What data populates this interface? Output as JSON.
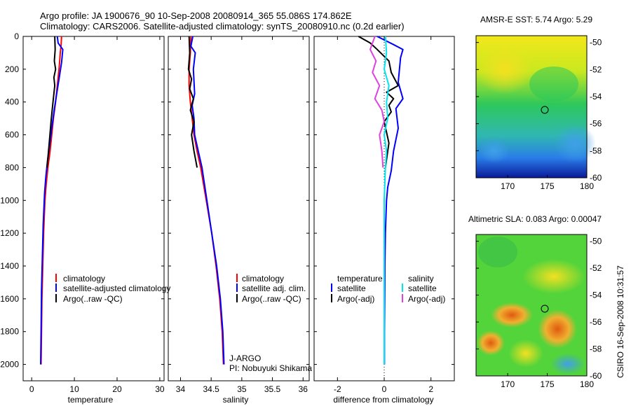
{
  "header": {
    "title_line1": "Argo profile: JA 1900676_90 10-Sep-2008 20080914_365 55.086S 174.862E",
    "title_line2": "Climatology: CARS2006. Satellite-adjusted climatology: synTS_20080910.nc (0.2d earlier)"
  },
  "colors": {
    "climatology": "#ff0000",
    "satellite": "#0000ff",
    "argo": "#000000",
    "satellite_diff": "#00e5ee",
    "argo_diff_sal": "#e040e0"
  },
  "chart_data": [
    {
      "id": "temperature",
      "type": "line",
      "xlabel": "temperature",
      "xlim": [
        -2,
        31
      ],
      "ylim": [
        2100,
        0
      ],
      "xticks": [
        "0",
        "10",
        "20",
        "30"
      ],
      "xtick_values": [
        0,
        10,
        20,
        30
      ],
      "yticks": [
        "0",
        "200",
        "400",
        "600",
        "800",
        "1000",
        "1200",
        "1400",
        "1600",
        "1800",
        "2000"
      ],
      "ytick_values": [
        0,
        200,
        400,
        600,
        800,
        1000,
        1200,
        1400,
        1600,
        1800,
        2000
      ],
      "legend": [
        "climatology",
        "satellite-adjusted climatology",
        "Argo(..raw -QC)"
      ],
      "series": [
        {
          "name": "climatology",
          "color": "#ff0000",
          "x": [
            7.0,
            6.9,
            6.7,
            6.4,
            6.0,
            5.6,
            5.1,
            4.7,
            4.3,
            3.8,
            3.4,
            3.1,
            2.8,
            2.6,
            2.4,
            2.3,
            2.2
          ],
          "y": [
            0,
            50,
            100,
            200,
            300,
            400,
            500,
            600,
            700,
            800,
            900,
            1000,
            1200,
            1400,
            1600,
            1800,
            2000
          ]
        },
        {
          "name": "satellite-adjusted climatology",
          "color": "#0000ff",
          "x": [
            6.0,
            6.2,
            7.3,
            7.0,
            6.4,
            5.8,
            5.2,
            4.7,
            4.2,
            3.7,
            3.3,
            3.0,
            2.7,
            2.5,
            2.3,
            2.2,
            2.1
          ],
          "y": [
            0,
            40,
            80,
            160,
            260,
            360,
            460,
            560,
            660,
            760,
            860,
            960,
            1150,
            1350,
            1550,
            1800,
            2000
          ]
        },
        {
          "name": "Argo(..raw -QC)",
          "color": "#000000",
          "x": [
            5.4,
            5.5,
            5.3,
            5.6,
            5.2,
            5.4,
            5.0,
            4.6,
            4.1,
            3.6
          ],
          "y": [
            0,
            80,
            150,
            200,
            250,
            300,
            400,
            500,
            650,
            800
          ]
        }
      ]
    },
    {
      "id": "salinity",
      "type": "line",
      "xlabel": "salinity",
      "xlim": [
        33.8,
        36.1
      ],
      "ylim": [
        2100,
        0
      ],
      "xticks": [
        "34",
        "34.5",
        "35",
        "35.5",
        "36"
      ],
      "xtick_values": [
        34,
        34.5,
        35,
        35.5,
        36
      ],
      "legend": [
        "climatology",
        "satellite adj. clim.",
        "Argo(..raw -QC)"
      ],
      "annotation": [
        "J-ARGO",
        "PI: Nobuyuki Shikama"
      ],
      "series": [
        {
          "name": "climatology",
          "color": "#ff0000",
          "x": [
            34.17,
            34.16,
            34.14,
            34.14,
            34.16,
            34.19,
            34.22,
            34.27,
            34.33,
            34.42,
            34.51,
            34.58,
            34.64,
            34.68,
            34.7
          ],
          "y": [
            0,
            100,
            200,
            300,
            400,
            500,
            600,
            700,
            800,
            1000,
            1200,
            1400,
            1600,
            1800,
            2000
          ]
        },
        {
          "name": "satellite adj. clim.",
          "color": "#0000ff",
          "x": [
            34.2,
            34.17,
            34.24,
            34.21,
            34.23,
            34.19,
            34.22,
            34.23,
            34.29,
            34.35,
            34.43,
            34.51,
            34.59,
            34.65,
            34.69,
            34.71
          ],
          "y": [
            0,
            60,
            100,
            200,
            350,
            420,
            500,
            600,
            700,
            800,
            1000,
            1200,
            1400,
            1600,
            1800,
            2000
          ]
        },
        {
          "name": "Argo(..raw -QC)",
          "color": "#000000",
          "x": [
            34.14,
            34.15,
            34.13,
            34.18,
            34.15,
            34.21,
            34.16,
            34.22,
            34.18,
            34.22,
            34.27
          ],
          "y": [
            0,
            100,
            200,
            260,
            320,
            380,
            450,
            520,
            600,
            700,
            800
          ]
        }
      ]
    },
    {
      "id": "difference",
      "type": "line",
      "xlabel": "difference from climatology",
      "xlim": [
        -3,
        3
      ],
      "ylim": [
        2100,
        0
      ],
      "xticks": [
        "-2",
        "0",
        "2"
      ],
      "xtick_values": [
        -2,
        0,
        2
      ],
      "legend_headers": [
        "temperature",
        "salinity"
      ],
      "legend": [
        "satellite",
        "Argo(-adj)",
        "satellite",
        "Argo(-adj)"
      ],
      "series": [
        {
          "name": "temperature satellite",
          "color": "#0000ff",
          "x": [
            -0.3,
            0.4,
            0.8,
            0.7,
            0.6,
            0.8,
            0.5,
            0.6,
            0.4,
            0.3,
            0.15,
            0.1,
            0.05,
            0.03,
            0.02,
            0.01,
            0.01
          ],
          "y": [
            0,
            50,
            80,
            130,
            280,
            380,
            440,
            560,
            700,
            820,
            920,
            1000,
            1200,
            1400,
            1600,
            1800,
            2000
          ]
        },
        {
          "name": "temperature Argo(-adj)",
          "color": "#000000",
          "x": [
            -1.1,
            -0.6,
            -0.3,
            0.2,
            0.3,
            0.6,
            0.1,
            0.4,
            0.2,
            0.3,
            0.0,
            0.2,
            0.05
          ],
          "y": [
            0,
            40,
            80,
            150,
            220,
            300,
            340,
            380,
            420,
            460,
            520,
            650,
            800
          ]
        },
        {
          "name": "salinity satellite",
          "color": "#00e5ee",
          "x": [
            0.05,
            0.1,
            0.0,
            0.2,
            0.1,
            0.15,
            0.0,
            0.1,
            0.05,
            0.0,
            0.0,
            0.0,
            0.0,
            0.0
          ],
          "y": [
            0,
            100,
            200,
            300,
            400,
            500,
            600,
            700,
            800,
            1000,
            1200,
            1500,
            1800,
            2000
          ]
        },
        {
          "name": "salinity Argo(-adj)",
          "color": "#e040e0",
          "x": [
            -0.4,
            -0.6,
            -0.35,
            -0.5,
            -0.2,
            -0.4,
            -0.1,
            0.0,
            -0.2,
            -0.1,
            -0.05
          ],
          "y": [
            0,
            80,
            150,
            220,
            300,
            380,
            450,
            520,
            600,
            700,
            800
          ]
        }
      ]
    },
    {
      "id": "sst_map",
      "type": "heatmap",
      "title": "AMSR-E SST: 5.74 Argo: 5.29",
      "xticks": [
        "170",
        "175",
        "180"
      ],
      "yticks": [
        "-50",
        "-52",
        "-54",
        "-56",
        "-58",
        "-60"
      ],
      "xlim": [
        166,
        180
      ],
      "ylim": [
        -60,
        -49.5
      ],
      "argo_position": [
        174.862,
        -55.086
      ]
    },
    {
      "id": "sla_map",
      "type": "heatmap",
      "title": "Altimetric SLA: 0.083 Argo: 0.00047",
      "xticks": [
        "170",
        "175",
        "180"
      ],
      "yticks": [
        "-50",
        "-52",
        "-54",
        "-56",
        "-58",
        "-60"
      ],
      "xlim": [
        166,
        180
      ],
      "ylim": [
        -60,
        -49.5
      ],
      "argo_position": [
        174.862,
        -55.086
      ]
    }
  ],
  "footer": {
    "credit": "CSIRO 16-Sep-2008 10:31:57"
  }
}
